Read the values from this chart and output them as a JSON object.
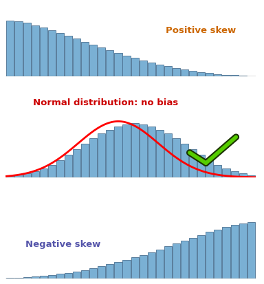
{
  "bg_color": "#ffffff",
  "bar_color": "#7ab0d4",
  "bar_edge_color": "#4a6f90",
  "n_bars": 30,
  "panel_labels": [
    "Positive skew",
    "Normal distribution: no bias",
    "Negative skew"
  ],
  "label_colors": [
    "#cc6600",
    "#cc0000",
    "#5555aa"
  ],
  "label_fontsize": 9.5,
  "red_curve_color": "#ff0000",
  "pos_skew_values": [
    15.5,
    15.2,
    14.8,
    14.2,
    13.5,
    12.8,
    12.0,
    11.2,
    10.4,
    9.6,
    8.8,
    8.0,
    7.2,
    6.5,
    5.8,
    5.1,
    4.5,
    3.9,
    3.3,
    2.8,
    2.3,
    1.9,
    1.5,
    1.2,
    0.9,
    0.7,
    0.5,
    0.35,
    0.2,
    0.1
  ],
  "bell_values": [
    0.4,
    0.7,
    1.1,
    1.7,
    2.5,
    3.5,
    4.8,
    6.2,
    7.8,
    9.3,
    10.8,
    12.1,
    13.2,
    14.1,
    14.7,
    15.0,
    14.7,
    14.1,
    13.2,
    12.1,
    10.8,
    9.3,
    7.8,
    6.2,
    4.8,
    3.5,
    2.5,
    1.7,
    1.1,
    0.5
  ],
  "neg_skew_values": [
    0.1,
    0.2,
    0.35,
    0.5,
    0.7,
    0.9,
    1.2,
    1.5,
    1.9,
    2.3,
    2.8,
    3.3,
    3.9,
    4.5,
    5.1,
    5.8,
    6.5,
    7.2,
    8.0,
    8.8,
    9.6,
    10.4,
    11.2,
    12.0,
    12.8,
    13.5,
    14.2,
    14.8,
    15.2,
    15.5
  ],
  "baseline_color": "#555555",
  "check_outer_color": "#1a3300",
  "check_inner_color": "#55cc00"
}
